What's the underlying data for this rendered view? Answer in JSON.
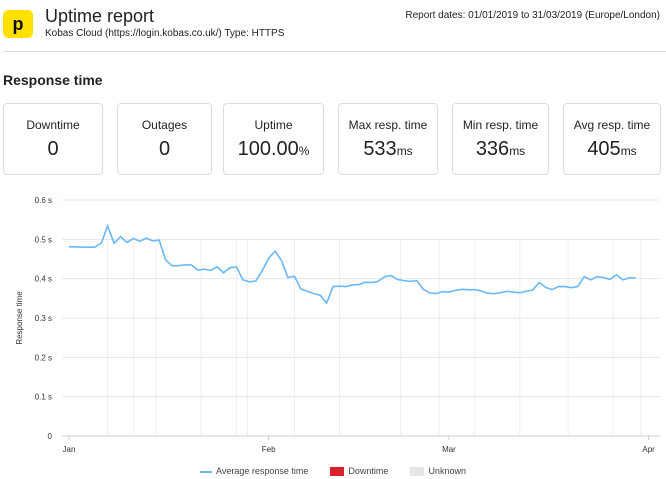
{
  "header": {
    "logo_letter": "p",
    "title": "Uptime report",
    "subtitle": "Kobas Cloud (https://login.kobas.co.uk/) Type: HTTPS",
    "report_dates": "Report dates: 01/01/2019 to 31/03/2019 (Europe/London)"
  },
  "section_title": "Response time",
  "stats": [
    {
      "label": "Downtime",
      "value": "0",
      "unit": ""
    },
    {
      "label": "Outages",
      "value": "0",
      "unit": ""
    },
    {
      "label": "Uptime",
      "value": "100.00",
      "unit": "%"
    },
    {
      "label": "Max resp. time",
      "value": "533",
      "unit": "ms"
    },
    {
      "label": "Min resp. time",
      "value": "336",
      "unit": "ms"
    },
    {
      "label": "Avg resp. time",
      "value": "405",
      "unit": "ms"
    }
  ],
  "chart_data": {
    "type": "line",
    "ylabel": "Response time",
    "yticks": [
      "0",
      "0.1 s",
      "0.2 s",
      "0.3 s",
      "0.4 s",
      "0.5 s",
      "0.6 s"
    ],
    "ylim": [
      0,
      0.6
    ],
    "xticks": [
      {
        "label": "Jan",
        "day": 0
      },
      {
        "label": "Feb",
        "day": 31
      },
      {
        "label": "Mar",
        "day": 59
      },
      {
        "label": "Apr",
        "day": 90
      }
    ],
    "series": [
      {
        "name": "Average response time",
        "color": "#6ab8f7",
        "values": [
          0.481,
          0.481,
          0.48,
          0.48,
          0.48,
          0.49,
          0.534,
          0.49,
          0.507,
          0.492,
          0.502,
          0.495,
          0.503,
          0.496,
          0.498,
          0.448,
          0.433,
          0.433,
          0.435,
          0.435,
          0.422,
          0.424,
          0.421,
          0.43,
          0.415,
          0.428,
          0.43,
          0.397,
          0.392,
          0.394,
          0.42,
          0.452,
          0.47,
          0.446,
          0.403,
          0.406,
          0.374,
          0.368,
          0.362,
          0.358,
          0.338,
          0.38,
          0.381,
          0.38,
          0.384,
          0.385,
          0.391,
          0.39,
          0.393,
          0.405,
          0.408,
          0.398,
          0.395,
          0.393,
          0.395,
          0.373,
          0.364,
          0.362,
          0.367,
          0.366,
          0.37,
          0.373,
          0.372,
          0.372,
          0.369,
          0.363,
          0.362,
          0.364,
          0.368,
          0.366,
          0.364,
          0.368,
          0.371,
          0.39,
          0.378,
          0.372,
          0.38,
          0.38,
          0.377,
          0.38,
          0.405,
          0.397,
          0.405,
          0.403,
          0.398,
          0.41,
          0.397,
          0.402,
          0.402
        ]
      }
    ],
    "legend": [
      {
        "label": "Average response time",
        "color": "#6ab8f7"
      },
      {
        "label": "Downtime",
        "color": "#d9232a"
      },
      {
        "label": "Unknown",
        "color": "#e6e6e6"
      }
    ]
  }
}
